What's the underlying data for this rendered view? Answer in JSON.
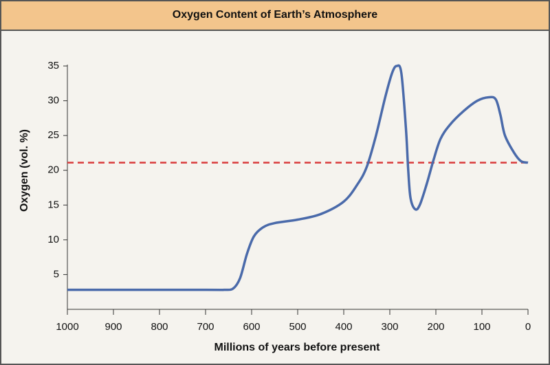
{
  "chart_data": {
    "type": "line",
    "title": "Oxygen Content of Earth’s Atmosphere",
    "x_label": "Millions of years before present",
    "y_label": "Oxygen (vol. %)",
    "x": [
      1000,
      700,
      660,
      640,
      625,
      610,
      595,
      575,
      550,
      500,
      450,
      400,
      370,
      350,
      330,
      310,
      295,
      285,
      275,
      265,
      260,
      255,
      245,
      235,
      220,
      205,
      190,
      170,
      140,
      110,
      85,
      70,
      60,
      50,
      30,
      15,
      0
    ],
    "series": [
      {
        "color": "#4a6aaa",
        "values": [
          2.8,
          2.8,
          2.8,
          3.0,
          4.5,
          8,
          10.5,
          11.8,
          12.4,
          12.9,
          13.7,
          15.5,
          18,
          20.5,
          25,
          30.5,
          34,
          35,
          34,
          26,
          20,
          16,
          14.4,
          15,
          18,
          21.5,
          24.5,
          26.5,
          28.5,
          30,
          30.5,
          30.2,
          28,
          25,
          22.5,
          21.3,
          21.1
        ]
      }
    ],
    "reference_line": {
      "value": 21.1,
      "color": "#d93a3a"
    },
    "xlim": [
      1000,
      0
    ],
    "xticks": [
      1000,
      900,
      800,
      700,
      600,
      500,
      400,
      300,
      200,
      100,
      0
    ],
    "ylim": [
      0,
      35
    ],
    "yticks": [
      5,
      10,
      15,
      20,
      25,
      30,
      35
    ]
  }
}
